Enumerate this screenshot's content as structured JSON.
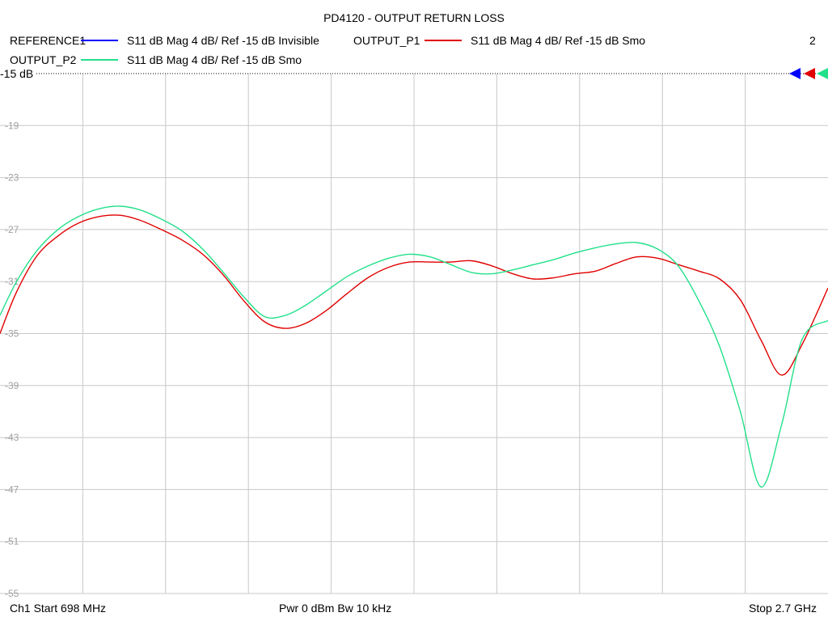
{
  "title": "PD4120 - OUTPUT RETURN LOSS",
  "legend": [
    {
      "trace": "REFERENCE1",
      "color": "#0000ff",
      "desc": "S11  dB Mag  4 dB/ Ref -15 dB  Invisible"
    },
    {
      "trace": "OUTPUT_P1",
      "color": "#e00000",
      "desc": "S11  dB Mag  4 dB/ Ref -15 dB  Smo"
    },
    {
      "trace": "OUTPUT_P2",
      "color": "#22e08a",
      "desc": "S11  dB Mag  4 dB/ Ref -15 dB  Smo"
    }
  ],
  "channel_count": "2",
  "ref_label": "-15 dB",
  "footer": {
    "start": "Ch1  Start  698 MHz",
    "power": "Pwr  0 dBm  Bw  10 kHz",
    "stop": "Stop  2.7 GHz"
  },
  "marker_colors": [
    "#0000ff",
    "#e00000",
    "#22e08a"
  ],
  "chart_data": {
    "type": "line",
    "title": "PD4120 - OUTPUT RETURN LOSS",
    "xlabel": "",
    "ylabel": "",
    "xlim": [
      698,
      2700
    ],
    "x_unit": "MHz",
    "ylim": [
      -55,
      -15
    ],
    "yticks": [
      -15,
      -19,
      -23,
      -27,
      -31,
      -35,
      -39,
      -43,
      -47,
      -51,
      -55
    ],
    "ytick_labels": [
      "-15",
      "-19",
      "-23",
      "-27",
      "-31",
      "-35",
      "-39",
      "-43",
      "-47",
      "-51",
      "-55"
    ],
    "grid": true,
    "series": [
      {
        "name": "OUTPUT_P1",
        "color": "#e00000",
        "x": [
          698,
          738,
          788,
          838,
          888,
          938,
          988,
          1038,
          1088,
          1138,
          1188,
          1238,
          1288,
          1338,
          1388,
          1438,
          1488,
          1538,
          1588,
          1638,
          1688,
          1738,
          1788,
          1838,
          1888,
          1938,
          1988,
          2038,
          2088,
          2138,
          2188,
          2238,
          2288,
          2338,
          2388,
          2438,
          2488,
          2538,
          2588,
          2638,
          2700
        ],
        "values": [
          -35.0,
          -31.8,
          -29.0,
          -27.5,
          -26.5,
          -26.0,
          -25.9,
          -26.3,
          -27.0,
          -27.8,
          -28.9,
          -30.5,
          -32.5,
          -34.1,
          -34.6,
          -34.2,
          -33.2,
          -31.9,
          -30.7,
          -29.9,
          -29.5,
          -29.5,
          -29.5,
          -29.4,
          -29.8,
          -30.4,
          -30.8,
          -30.7,
          -30.4,
          -30.2,
          -29.6,
          -29.1,
          -29.2,
          -29.7,
          -30.2,
          -30.8,
          -32.4,
          -35.5,
          -38.2,
          -35.8,
          -31.5
        ]
      },
      {
        "name": "OUTPUT_P2",
        "color": "#22e08a",
        "x": [
          698,
          738,
          788,
          838,
          888,
          938,
          988,
          1038,
          1088,
          1138,
          1188,
          1238,
          1288,
          1338,
          1388,
          1438,
          1488,
          1538,
          1588,
          1638,
          1688,
          1738,
          1788,
          1838,
          1888,
          1938,
          1988,
          2038,
          2088,
          2138,
          2188,
          2238,
          2288,
          2338,
          2388,
          2438,
          2488,
          2538,
          2588,
          2638,
          2700
        ],
        "values": [
          -33.6,
          -31.0,
          -28.6,
          -27.0,
          -26.0,
          -25.4,
          -25.2,
          -25.5,
          -26.2,
          -27.1,
          -28.5,
          -30.3,
          -32.2,
          -33.7,
          -33.6,
          -32.8,
          -31.7,
          -30.6,
          -29.8,
          -29.2,
          -28.9,
          -29.1,
          -29.7,
          -30.3,
          -30.4,
          -30.1,
          -29.7,
          -29.3,
          -28.8,
          -28.4,
          -28.1,
          -28.0,
          -28.5,
          -29.8,
          -32.5,
          -36.0,
          -41.0,
          -46.8,
          -42.0,
          -35.4,
          -34.0
        ]
      }
    ]
  }
}
